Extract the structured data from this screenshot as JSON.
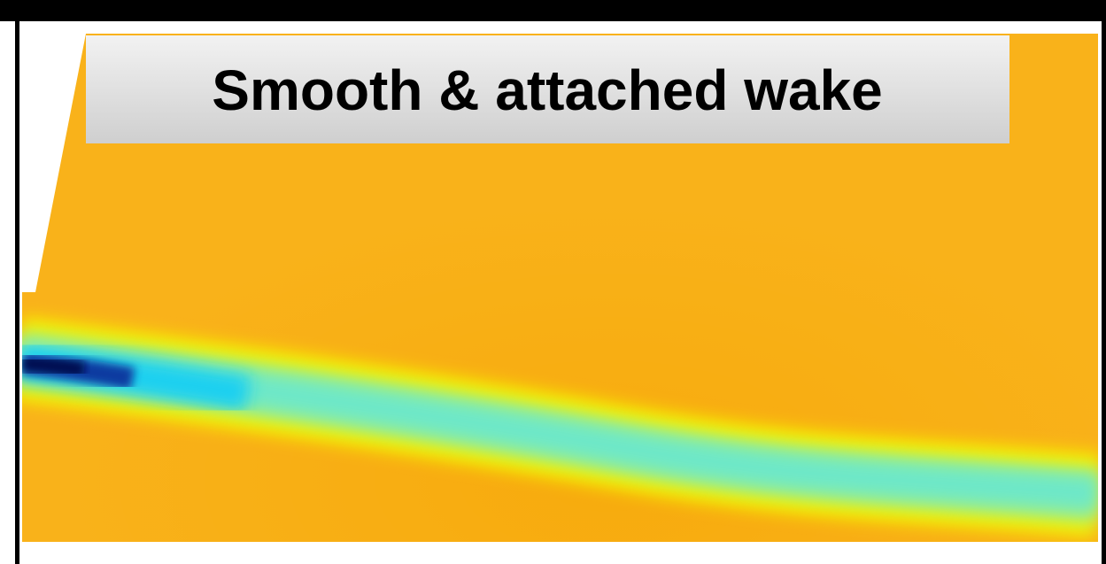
{
  "label": "Smooth & attached wake"
}
